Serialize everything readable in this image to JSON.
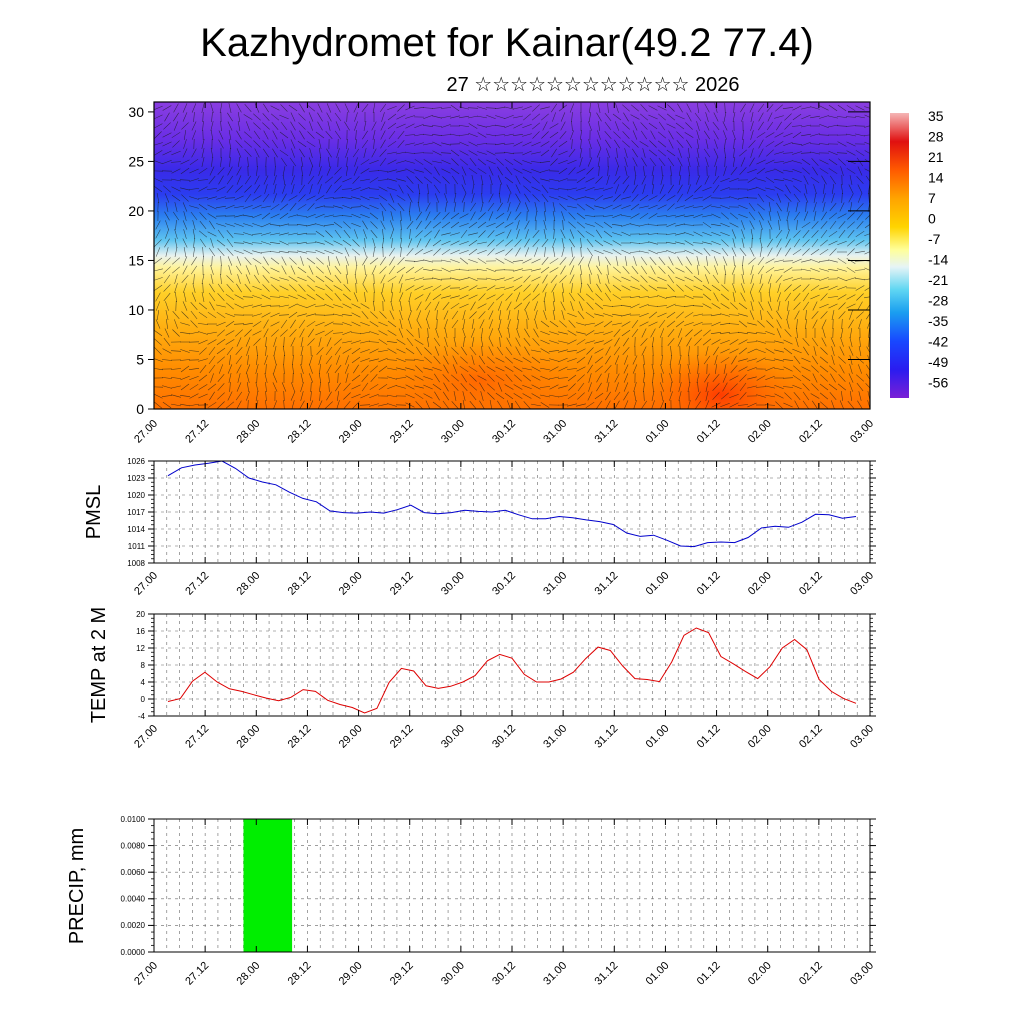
{
  "title": "Kazhydromet for Kainar(49.2 77.4)",
  "subtitle": "27 ☆☆☆☆☆☆☆☆☆☆☆☆ 2026",
  "colors": {
    "pmsl_line": "#0000cc",
    "temp_line": "#dd0000",
    "precip_bar": "#00ee00",
    "frame": "#000000"
  },
  "chart_data": [
    {
      "type": "heatmap",
      "id": "upper-air",
      "xlabel": "",
      "ylabel": "",
      "ylim": [
        0,
        31
      ],
      "y_ticks": [
        0,
        5,
        10,
        15,
        20,
        25,
        30
      ],
      "x_tick_labels": [
        "27.00",
        "27.12",
        "28.00",
        "28.12",
        "29.00",
        "29.12",
        "30.00",
        "30.12",
        "31.00",
        "31.12",
        "01.00",
        "01.12",
        "02.00",
        "02.12",
        "03.00"
      ],
      "colorbar_labels": [
        "35",
        "28",
        "21",
        "14",
        "7",
        "0",
        "-7",
        "-14",
        "-21",
        "-28",
        "-35",
        "-42",
        "-49",
        "-56"
      ],
      "colorbar_range": [
        -63,
        42
      ]
    },
    {
      "type": "line",
      "id": "pmsl",
      "ylabel": "PMSL",
      "ylim": [
        1008,
        1026
      ],
      "y_ticks": [
        1008,
        1011,
        1014,
        1017,
        1020,
        1023,
        1026
      ],
      "x_tick_labels": [
        "27.00",
        "27.12",
        "28.00",
        "28.12",
        "29.00",
        "29.12",
        "30.00",
        "30.12",
        "31.00",
        "31.12",
        "01.00",
        "01.12",
        "02.00",
        "02.12",
        "03.00"
      ],
      "x_step_hours": 6,
      "values": [
        1023.4,
        1024.8,
        1025.3,
        1025.6,
        1026.0,
        1024.7,
        1023.0,
        1022.3,
        1021.8,
        1020.5,
        1019.4,
        1018.8,
        1017.2,
        1016.9,
        1016.8,
        1017.0,
        1016.8,
        1017.4,
        1018.2,
        1016.9,
        1016.7,
        1016.9,
        1017.3,
        1017.1,
        1017.0,
        1017.3,
        1016.5,
        1015.8,
        1015.8,
        1016.2,
        1016.0,
        1015.6,
        1015.3,
        1014.8,
        1013.3,
        1012.7,
        1012.9,
        1012.0,
        1011.0,
        1010.9,
        1011.6,
        1011.7,
        1011.6,
        1012.5,
        1014.2,
        1014.5,
        1014.3,
        1015.2,
        1016.6,
        1016.5,
        1015.9,
        1016.2
      ]
    },
    {
      "type": "line",
      "id": "temp",
      "ylabel": "TEMP at 2 M",
      "ylim": [
        -4,
        20
      ],
      "y_ticks": [
        -4,
        0,
        4,
        8,
        12,
        16,
        20
      ],
      "x_tick_labels": [
        "27.00",
        "27.12",
        "28.00",
        "28.12",
        "29.00",
        "29.12",
        "30.00",
        "30.12",
        "31.00",
        "31.12",
        "01.00",
        "01.12",
        "02.00",
        "02.12",
        "03.00"
      ],
      "x_step_hours": 6,
      "values": [
        -0.6,
        0.1,
        4.2,
        6.3,
        4.0,
        2.4,
        1.8,
        1.0,
        0.2,
        -0.4,
        0.4,
        2.2,
        1.8,
        -0.3,
        -1.3,
        -2.0,
        -3.3,
        -2.2,
        3.9,
        7.2,
        6.6,
        3.1,
        2.5,
        3.0,
        4.0,
        5.5,
        9.0,
        10.5,
        9.6,
        5.8,
        4.0,
        4.0,
        4.7,
        6.3,
        9.5,
        12.2,
        11.4,
        7.8,
        4.8,
        4.6,
        4.1,
        8.7,
        15.0,
        16.7,
        15.6,
        10.0,
        8.3,
        6.5,
        4.8,
        7.6,
        12.0,
        14.0,
        11.6,
        4.6,
        1.8,
        0.1,
        -1.0
      ]
    },
    {
      "type": "bar",
      "id": "precip",
      "ylabel": "PRECIP, mm",
      "ylim": [
        0,
        0.01
      ],
      "y_tick_labels": [
        "0.0000",
        "0.0020",
        "0.0040",
        "0.0060",
        "0.0080",
        "0.0100"
      ],
      "x_tick_labels": [
        "27.00",
        "27.12",
        "28.00",
        "28.12",
        "29.00",
        "29.12",
        "30.00",
        "30.12",
        "31.00",
        "31.12",
        "01.00",
        "01.12",
        "02.00",
        "02.12",
        "03.00"
      ],
      "bars": [
        {
          "x_start": 1.75,
          "x_end": 2.7,
          "value": 0.01
        }
      ]
    }
  ]
}
